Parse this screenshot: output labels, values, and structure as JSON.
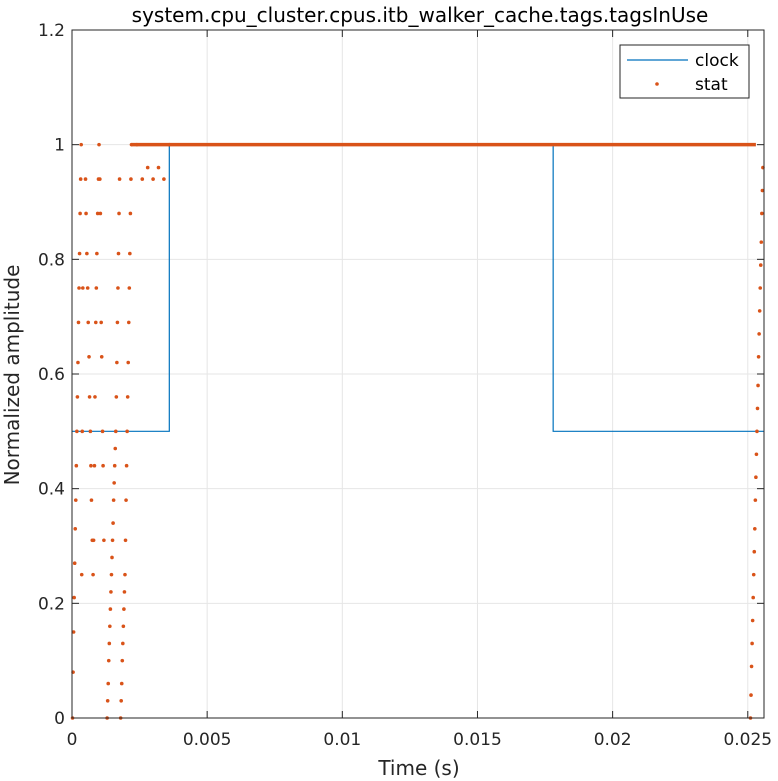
{
  "chart_data": {
    "type": "line",
    "title": "system.cpu_cluster.cpus.itb_walker_cache.tags.tagsInUse",
    "xlabel": "Time (s)",
    "ylabel": "Normalized amplitude",
    "xlim": [
      0,
      0.0256
    ],
    "ylim": [
      0,
      1.2
    ],
    "grid": true,
    "legend_position": "top-right",
    "x_ticks": [
      0,
      0.005,
      0.01,
      0.015,
      0.02,
      0.025
    ],
    "x_tick_labels": [
      "0",
      "0.005",
      "0.01",
      "0.015",
      "0.02",
      "0.025"
    ],
    "y_ticks": [
      0,
      0.2,
      0.4,
      0.6,
      0.8,
      1,
      1.2
    ],
    "y_tick_labels": [
      "0",
      "0.2",
      "0.4",
      "0.6",
      "0.8",
      "1",
      "1.2"
    ],
    "colors": {
      "clock": "#0072BD",
      "stat": "#D95319",
      "grid": "#e6e6e6",
      "axis": "#262626"
    },
    "series": [
      {
        "name": "clock",
        "style": "line",
        "x": [
          0,
          0.0036,
          0.0036,
          0.0178,
          0.0178,
          0.0256
        ],
        "y": [
          0.5,
          0.5,
          1.0,
          1.0,
          0.5,
          0.5
        ]
      },
      {
        "name": "stat",
        "style": "dots",
        "x": [
          2e-05,
          4e-05,
          6e-05,
          8e-05,
          0.0001,
          0.00012,
          0.00014,
          0.00016,
          0.00018,
          0.0002,
          0.00022,
          0.00024,
          0.00026,
          0.00028,
          0.0003,
          0.00032,
          0.00034,
          0.00036,
          0.00038,
          0.0004,
          0.0005,
          0.00052,
          0.00055,
          0.00058,
          0.0006,
          0.00063,
          0.00065,
          0.00068,
          0.0007,
          0.00072,
          0.00075,
          0.00078,
          0.0008,
          0.00083,
          0.00085,
          0.00088,
          0.0009,
          0.00092,
          0.00095,
          0.00098,
          0.001,
          0.00103,
          0.00105,
          0.00108,
          0.0011,
          0.00113,
          0.00115,
          0.00118,
          0.0013,
          0.00132,
          0.00134,
          0.00136,
          0.00138,
          0.0014,
          0.00142,
          0.00144,
          0.00146,
          0.00148,
          0.0015,
          0.00152,
          0.00154,
          0.00156,
          0.00158,
          0.0016,
          0.00162,
          0.00164,
          0.00166,
          0.00168,
          0.0017,
          0.00172,
          0.00174,
          0.00176,
          0.0018,
          0.00182,
          0.00184,
          0.00186,
          0.00188,
          0.0019,
          0.00192,
          0.00194,
          0.00196,
          0.00198,
          0.002,
          0.00202,
          0.00204,
          0.00206,
          0.00208,
          0.0021,
          0.00212,
          0.00214,
          0.00216,
          0.00218,
          0.0022,
          0.0024,
          0.0026,
          0.0028,
          0.003,
          0.0032,
          0.0034,
          0.0036,
          0.0251,
          0.02512,
          0.02514,
          0.02516,
          0.02518,
          0.0252,
          0.02522,
          0.02524,
          0.02526,
          0.02528,
          0.0253,
          0.02532,
          0.02534,
          0.02536,
          0.02538,
          0.0254,
          0.02542,
          0.02544,
          0.02546,
          0.02548,
          0.0255,
          0.02552,
          0.02554,
          0.02556
        ],
        "y": [
          0.0,
          0.08,
          0.15,
          0.21,
          0.27,
          0.33,
          0.38,
          0.44,
          0.5,
          0.56,
          0.62,
          0.69,
          0.75,
          0.81,
          0.88,
          0.94,
          1.0,
          0.25,
          0.5,
          0.75,
          0.94,
          0.88,
          0.81,
          0.75,
          0.69,
          0.63,
          0.56,
          0.5,
          0.44,
          0.38,
          0.31,
          0.25,
          0.31,
          0.44,
          0.56,
          0.69,
          0.75,
          0.81,
          0.88,
          0.94,
          1.0,
          0.94,
          0.88,
          0.69,
          0.63,
          0.5,
          0.44,
          0.31,
          0.0,
          0.03,
          0.06,
          0.1,
          0.13,
          0.16,
          0.19,
          0.22,
          0.25,
          0.28,
          0.31,
          0.34,
          0.38,
          0.41,
          0.44,
          0.47,
          0.5,
          0.56,
          0.62,
          0.69,
          0.75,
          0.81,
          0.88,
          0.94,
          0.0,
          0.03,
          0.06,
          0.1,
          0.13,
          0.16,
          0.19,
          0.22,
          0.25,
          0.31,
          0.38,
          0.44,
          0.5,
          0.56,
          0.62,
          0.69,
          0.75,
          0.81,
          0.88,
          0.94,
          1.0,
          1.0,
          0.94,
          0.96,
          0.94,
          0.96,
          0.94,
          1.0,
          0.0,
          0.04,
          0.09,
          0.13,
          0.17,
          0.21,
          0.25,
          0.29,
          0.33,
          0.38,
          0.42,
          0.46,
          0.5,
          0.54,
          0.58,
          0.63,
          0.67,
          0.71,
          0.75,
          0.79,
          0.83,
          0.88,
          0.92,
          0.96
        ]
      }
    ]
  }
}
